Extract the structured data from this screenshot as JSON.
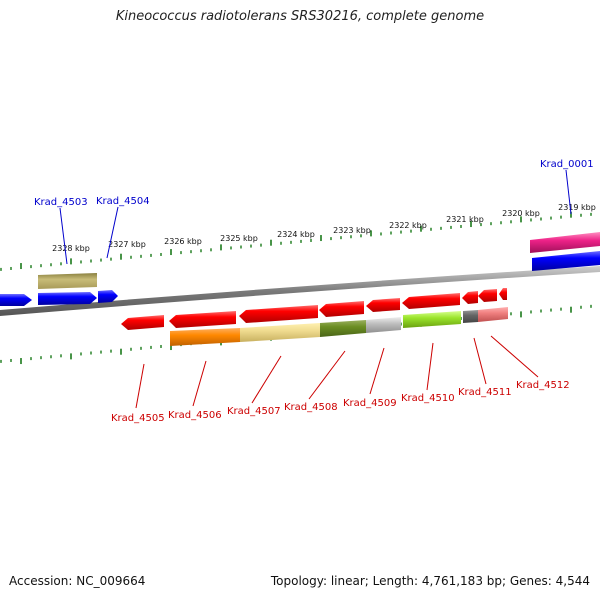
{
  "title": "Kineococcus radiotolerans SRS30216, complete genome",
  "footer": {
    "accession": "Accession: NC_009664",
    "topology": "Topology: linear; Length: 4,761,183 bp; Genes: 4,544"
  },
  "scale_labels": [
    "2328 kbp",
    "2327 kbp",
    "2326 kbp",
    "2325 kbp",
    "2324 kbp",
    "2323 kbp",
    "2322 kbp",
    "2321 kbp",
    "2320 kbp",
    "2319 kbp"
  ],
  "gene_labels_top": [
    {
      "text": "Krad_4503",
      "color": "#0000cc"
    },
    {
      "text": "Krad_4504",
      "color": "#0000cc"
    },
    {
      "text": "Krad_0001",
      "color": "#0000cc"
    }
  ],
  "gene_labels_bottom": [
    {
      "text": "Krad_4505",
      "color": "#cc0000"
    },
    {
      "text": "Krad_4506",
      "color": "#cc0000"
    },
    {
      "text": "Krad_4507",
      "color": "#cc0000"
    },
    {
      "text": "Krad_4508",
      "color": "#cc0000"
    },
    {
      "text": "Krad_4509",
      "color": "#cc0000"
    },
    {
      "text": "Krad_4510",
      "color": "#cc0000"
    },
    {
      "text": "Krad_4511",
      "color": "#cc0000"
    },
    {
      "text": "Krad_4512",
      "color": "#cc0000"
    }
  ],
  "colors": {
    "forward_gene": "#0000ff",
    "reverse_gene": "#ee0000",
    "backbone": "#888888",
    "tick": "#1a7a1a"
  }
}
